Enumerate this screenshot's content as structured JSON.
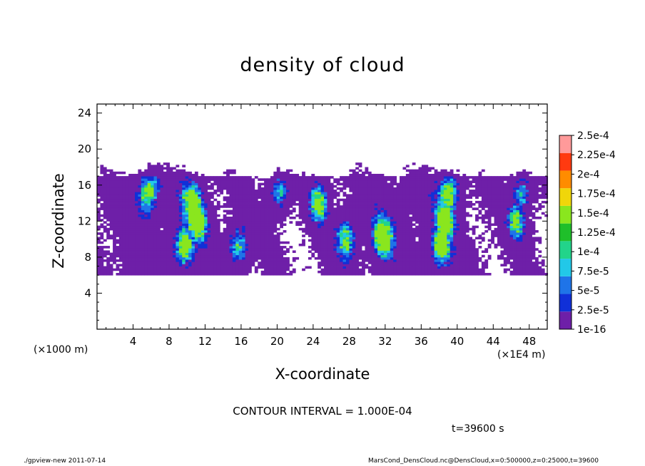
{
  "chart_data": {
    "type": "heatmap",
    "title": "density of cloud",
    "xlabel": "X-coordinate",
    "ylabel": "Z-coordinate",
    "x_unit_label": "(×1E4 m)",
    "y_unit_label": "(×1000 m)",
    "xlim": [
      0,
      50
    ],
    "ylim": [
      0,
      25
    ],
    "xticks": [
      4,
      8,
      12,
      16,
      20,
      24,
      28,
      32,
      36,
      40,
      44,
      48
    ],
    "yticks": [
      4,
      8,
      12,
      16,
      20,
      24
    ],
    "colorbar": {
      "labels": [
        "1e-16",
        "2.5e-5",
        "5e-5",
        "7.5e-5",
        "1e-4",
        "1.25e-4",
        "1.5e-4",
        "1.75e-4",
        "2e-4",
        "2.25e-4",
        "2.5e-4"
      ],
      "colors": [
        "#6e1fa8",
        "#1030d8",
        "#1f74e8",
        "#22c8e8",
        "#22d48a",
        "#1fbf2a",
        "#8ae61e",
        "#f0d60a",
        "#ff8c00",
        "#ff3a10",
        "#ff9a9a"
      ]
    },
    "cloud_layer_z_range": [
      6,
      17
    ],
    "contour_interval": "CONTOUR INTERVAL = 1.000E-04",
    "time": "t=39600 s"
  },
  "footer": {
    "left": "./gpview-new  2011-07-14",
    "right": "MarsCond_DensCloud.nc@DensCloud,x=0:500000,z=0:25000,t=39600"
  }
}
